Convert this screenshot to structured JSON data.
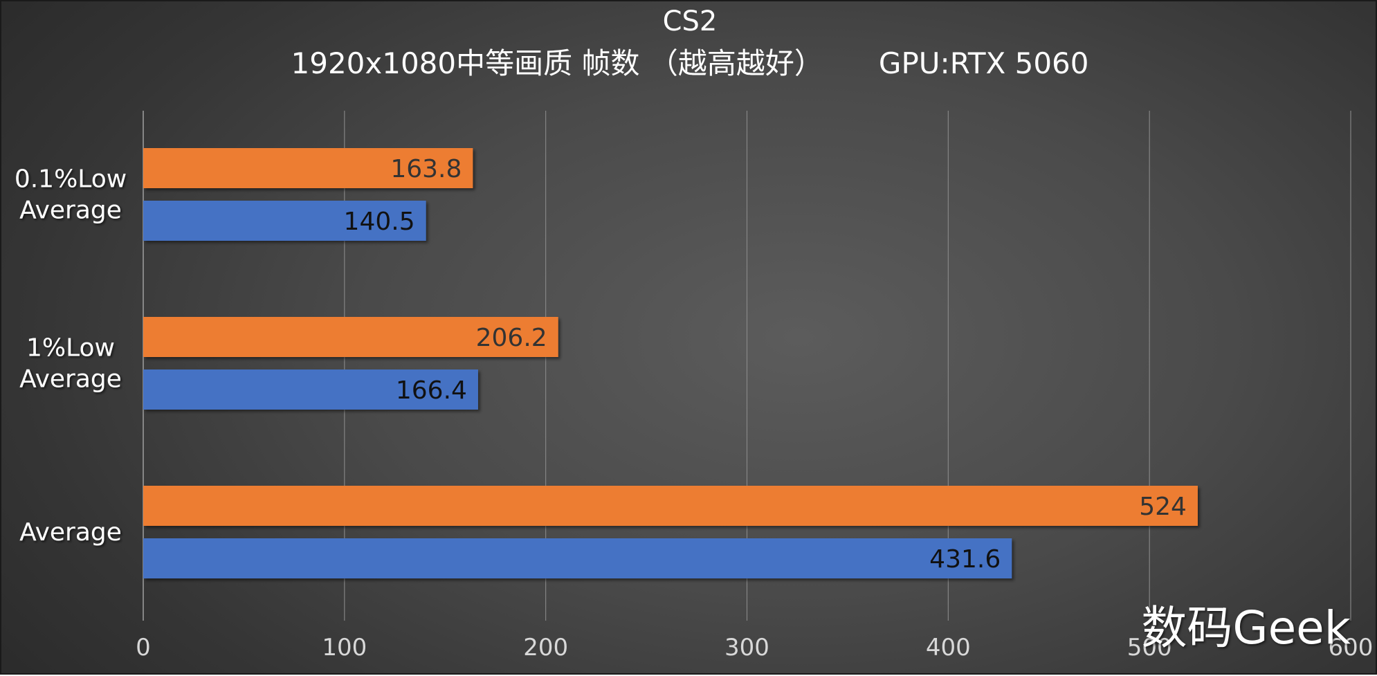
{
  "chart_data": {
    "type": "bar",
    "orientation": "horizontal",
    "title": "CS2",
    "subtitle": "1920x1080中等画质 帧数 （越高越好）      GPU:RTX 5060",
    "categories": [
      "0.1%Low\nAverage",
      "1%Low\nAverage",
      "Average"
    ],
    "series": [
      {
        "values": [
          163.8,
          206.2,
          524
        ],
        "color": "#ED7D31"
      },
      {
        "values": [
          140.5,
          166.4,
          431.6
        ],
        "color": "#4472C4"
      }
    ],
    "x_ticks": [
      "0",
      "100",
      "200",
      "300",
      "400",
      "500",
      "600"
    ],
    "xlim": [
      0,
      600
    ],
    "grid": true,
    "legend": "none"
  },
  "watermark": "数码Geek",
  "colors": {
    "grid": "#8a8a8a",
    "axis": "#9a9a9a",
    "tick_label": "#d8d8d8",
    "category_label": "#ffffff",
    "orange_label": "#333333",
    "blue_label": "#111111"
  }
}
